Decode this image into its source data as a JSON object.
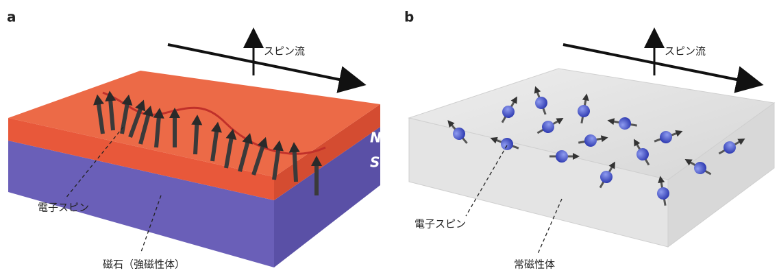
{
  "panels": [
    {
      "label": "a",
      "spin_current": "スピン流",
      "pole_n": "N",
      "pole_s": "S",
      "electron_spin": "電子スピン",
      "material": "磁石（強磁性体）"
    },
    {
      "label": "b",
      "spin_current": "スピン流",
      "electron_spin": "電子スピン",
      "material": "常磁性体"
    }
  ]
}
